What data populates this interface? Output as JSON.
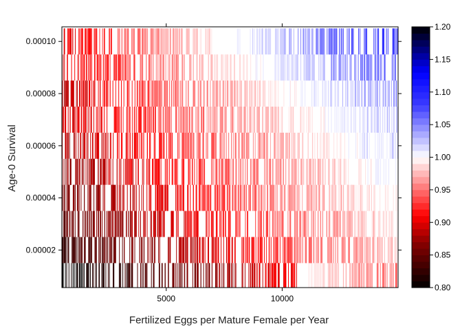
{
  "chart_data": {
    "type": "heatmap",
    "title": "",
    "xlabel": "Fertilized Eggs per Mature Female per Year",
    "ylabel": "Age-0 Survival",
    "xlim": [
      500,
      15000
    ],
    "ylim": [
      5.6e-06,
      0.0001056
    ],
    "x_ticks": [
      {
        "value": 5000,
        "label": "5000"
      },
      {
        "value": 10000,
        "label": "10000"
      }
    ],
    "y_ticks": [
      {
        "value": 2e-05,
        "label": "0.00002"
      },
      {
        "value": 4e-05,
        "label": "0.00004"
      },
      {
        "value": 6e-05,
        "label": "0.00006"
      },
      {
        "value": 8e-05,
        "label": "0.00008"
      },
      {
        "value": 0.0001,
        "label": "0.00010"
      }
    ],
    "rows": [
      {
        "survival": 1e-05,
        "min": 0.8,
        "max": 0.96
      },
      {
        "survival": 2e-05,
        "min": 0.83,
        "max": 0.98
      },
      {
        "survival": 3e-05,
        "min": 0.85,
        "max": 0.99
      },
      {
        "survival": 4e-05,
        "min": 0.86,
        "max": 1.0
      },
      {
        "survival": 5e-05,
        "min": 0.87,
        "max": 1.01
      },
      {
        "survival": 6e-05,
        "min": 0.88,
        "max": 1.02
      },
      {
        "survival": 7e-05,
        "min": 0.89,
        "max": 1.03
      },
      {
        "survival": 8e-05,
        "min": 0.89,
        "max": 1.05
      },
      {
        "survival": 9e-05,
        "min": 0.9,
        "max": 1.07
      },
      {
        "survival": 0.0001,
        "min": 0.9,
        "max": 1.1
      }
    ],
    "colorbar": {
      "min": 0.8,
      "max": 1.2,
      "ticks": [
        {
          "value": 0.8,
          "label": "0.80"
        },
        {
          "value": 0.85,
          "label": "0.85"
        },
        {
          "value": 0.9,
          "label": "0.90"
        },
        {
          "value": 0.95,
          "label": "0.95"
        },
        {
          "value": 1.0,
          "label": "1.00"
        },
        {
          "value": 1.05,
          "label": "1.05"
        },
        {
          "value": 1.1,
          "label": "1.10"
        },
        {
          "value": 1.15,
          "label": "1.15"
        },
        {
          "value": 1.2,
          "label": "1.20"
        }
      ],
      "stops": [
        {
          "value": 0.8,
          "color": "#000000"
        },
        {
          "value": 0.87,
          "color": "#8b0000"
        },
        {
          "value": 0.91,
          "color": "#ff0000"
        },
        {
          "value": 1.0,
          "color": "#ffffff"
        },
        {
          "value": 1.08,
          "color": "#3c3cff"
        },
        {
          "value": 1.13,
          "color": "#0000ff"
        },
        {
          "value": 1.2,
          "color": "#000000"
        }
      ]
    }
  }
}
